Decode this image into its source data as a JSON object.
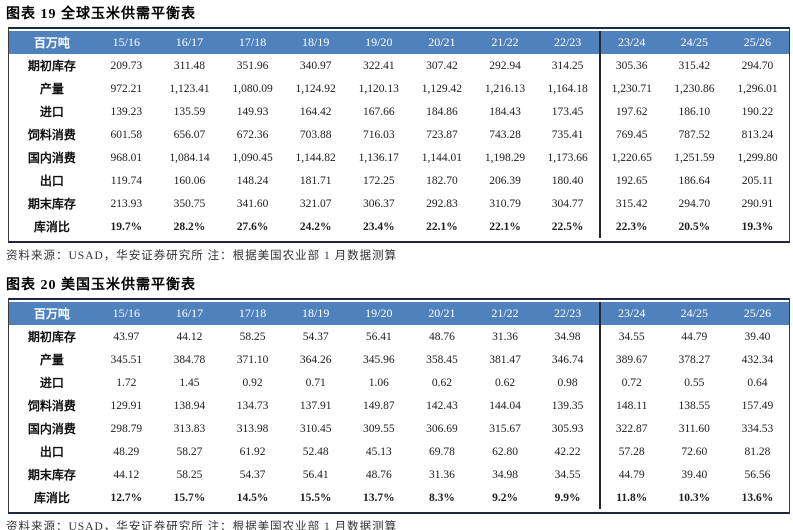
{
  "colors": {
    "header_bg": "#4f81bd",
    "header_text": "#ffffff",
    "border_dark": "#1f2937",
    "border_side": "#3a3a3a",
    "body_text": "#1f1f1f",
    "source_text": "#333333"
  },
  "figure19": {
    "title": "图表 19  全球玉米供需平衡表",
    "unit": "百万吨",
    "years": [
      "15/16",
      "16/17",
      "17/18",
      "18/19",
      "19/20",
      "20/21",
      "21/22",
      "22/23",
      "23/24",
      "24/25",
      "25/26"
    ],
    "divider_before_year": "23/24",
    "rows": [
      {
        "label": "期初库存",
        "values": [
          "209.73",
          "311.48",
          "351.96",
          "340.97",
          "322.41",
          "307.42",
          "292.94",
          "314.25",
          "305.36",
          "315.42",
          "294.70"
        ]
      },
      {
        "label": "产量",
        "values": [
          "972.21",
          "1,123.41",
          "1,080.09",
          "1,124.92",
          "1,120.13",
          "1,129.42",
          "1,216.13",
          "1,164.18",
          "1,230.71",
          "1,230.86",
          "1,296.01"
        ]
      },
      {
        "label": "进口",
        "values": [
          "139.23",
          "135.59",
          "149.93",
          "164.42",
          "167.66",
          "184.86",
          "184.43",
          "173.45",
          "197.62",
          "186.10",
          "190.22"
        ]
      },
      {
        "label": "饲料消费",
        "values": [
          "601.58",
          "656.07",
          "672.36",
          "703.88",
          "716.03",
          "723.87",
          "743.28",
          "735.41",
          "769.45",
          "787.52",
          "813.24"
        ]
      },
      {
        "label": "国内消费",
        "values": [
          "968.01",
          "1,084.14",
          "1,090.45",
          "1,144.82",
          "1,136.17",
          "1,144.01",
          "1,198.29",
          "1,173.66",
          "1,220.65",
          "1,251.59",
          "1,299.80"
        ]
      },
      {
        "label": "出口",
        "values": [
          "119.74",
          "160.06",
          "148.24",
          "181.71",
          "172.25",
          "182.70",
          "206.39",
          "180.40",
          "192.65",
          "186.64",
          "205.11"
        ]
      },
      {
        "label": "期末库存",
        "values": [
          "213.93",
          "350.75",
          "341.60",
          "321.07",
          "306.37",
          "292.83",
          "310.79",
          "304.77",
          "315.42",
          "294.70",
          "290.91"
        ]
      },
      {
        "label": "库消比",
        "emphasis": true,
        "values": [
          "19.7%",
          "28.2%",
          "27.6%",
          "24.2%",
          "23.4%",
          "22.1%",
          "22.1%",
          "22.5%",
          "22.3%",
          "20.5%",
          "19.3%"
        ]
      }
    ],
    "source": "资料来源：USAD，华安证券研究所  注：根据美国农业部 1 月数据测算"
  },
  "figure20": {
    "title": "图表 20  美国玉米供需平衡表",
    "unit": "百万吨",
    "years": [
      "15/16",
      "16/17",
      "17/18",
      "18/19",
      "19/20",
      "20/21",
      "21/22",
      "22/23",
      "23/24",
      "24/25",
      "25/26"
    ],
    "divider_before_year": "23/24",
    "rows": [
      {
        "label": "期初库存",
        "values": [
          "43.97",
          "44.12",
          "58.25",
          "54.37",
          "56.41",
          "48.76",
          "31.36",
          "34.98",
          "34.55",
          "44.79",
          "39.40"
        ]
      },
      {
        "label": "产量",
        "values": [
          "345.51",
          "384.78",
          "371.10",
          "364.26",
          "345.96",
          "358.45",
          "381.47",
          "346.74",
          "389.67",
          "378.27",
          "432.34"
        ]
      },
      {
        "label": "进口",
        "values": [
          "1.72",
          "1.45",
          "0.92",
          "0.71",
          "1.06",
          "0.62",
          "0.62",
          "0.98",
          "0.72",
          "0.55",
          "0.64"
        ]
      },
      {
        "label": "饲料消费",
        "values": [
          "129.91",
          "138.94",
          "134.73",
          "137.91",
          "149.87",
          "142.43",
          "144.04",
          "139.35",
          "148.11",
          "138.55",
          "157.49"
        ]
      },
      {
        "label": "国内消费",
        "values": [
          "298.79",
          "313.83",
          "313.98",
          "310.45",
          "309.55",
          "306.69",
          "315.67",
          "305.93",
          "322.87",
          "311.60",
          "334.53"
        ]
      },
      {
        "label": "出口",
        "values": [
          "48.29",
          "58.27",
          "61.92",
          "52.48",
          "45.13",
          "69.78",
          "62.80",
          "42.22",
          "57.28",
          "72.60",
          "81.28"
        ]
      },
      {
        "label": "期末库存",
        "values": [
          "44.12",
          "58.25",
          "54.37",
          "56.41",
          "48.76",
          "31.36",
          "34.98",
          "34.55",
          "44.79",
          "39.40",
          "56.56"
        ]
      },
      {
        "label": "库消比",
        "emphasis": true,
        "values": [
          "12.7%",
          "15.7%",
          "14.5%",
          "15.5%",
          "13.7%",
          "8.3%",
          "9.2%",
          "9.9%",
          "11.8%",
          "10.3%",
          "13.6%"
        ]
      }
    ],
    "source": "资料来源：USAD，华安证券研究所  注：根据美国农业部 1 月数据测算"
  }
}
